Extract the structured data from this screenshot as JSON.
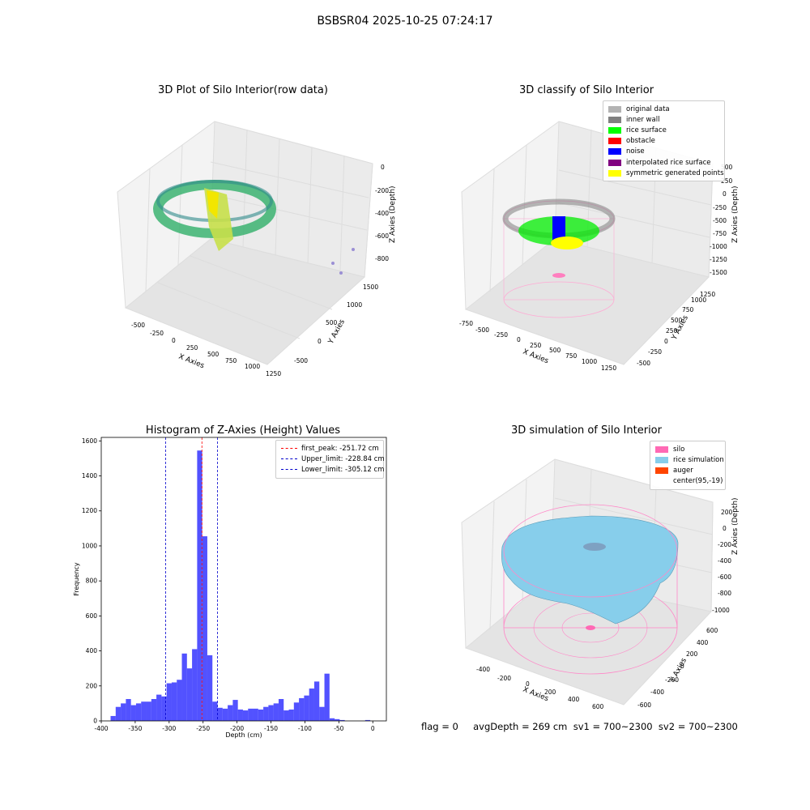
{
  "figure": {
    "suptitle": "BSBSR04 2025-10-25 07:24:17",
    "footer": "flag = 0     avgDepth = 269 cm  sv1 = 700~2300  sv2 = 700~2300"
  },
  "panels": {
    "raw": {
      "title": "3D Plot of Silo Interior(row data)",
      "xlabel": "X Axies",
      "ylabel": "Y Axies",
      "zlabel": "Z Axies (Depth)",
      "xticks": [
        "-500",
        "-250",
        "0",
        "250",
        "500",
        "750",
        "1000",
        "1250"
      ],
      "yticks": [
        "-500",
        "0",
        "500",
        "1000",
        "1500"
      ],
      "zticks": [
        "0",
        "-200",
        "-400",
        "-600",
        "-800"
      ]
    },
    "classify": {
      "title": "3D classify of Silo Interior",
      "xlabel": "X Axies",
      "ylabel": "Y Axies",
      "zlabel": "Z Axies (Depth)",
      "xticks": [
        "-750",
        "-500",
        "-250",
        "0",
        "250",
        "500",
        "750",
        "1000",
        "1250"
      ],
      "yticks": [
        "-500",
        "-250",
        "0",
        "250",
        "500",
        "750",
        "1000",
        "1250"
      ],
      "zticks": [
        "500",
        "250",
        "0",
        "-250",
        "-500",
        "-750",
        "-1000",
        "-1250",
        "-1500"
      ],
      "legend": [
        {
          "label": "original data",
          "color": "#b3b3b3"
        },
        {
          "label": "inner wall",
          "color": "#808080"
        },
        {
          "label": "rice surface",
          "color": "#00ff00"
        },
        {
          "label": "obstacle",
          "color": "#ff0000"
        },
        {
          "label": "noise",
          "color": "#0000ff"
        },
        {
          "label": "interpolated rice surface",
          "color": "#800080"
        },
        {
          "label": "symmetric generated points",
          "color": "#ffff00"
        }
      ]
    },
    "simulation": {
      "title": "3D simulation of Silo Interior",
      "xlabel": "X Axies",
      "ylabel": "Y Axies",
      "zlabel": "Z Axies (Depth)",
      "xticks": [
        "-400",
        "-200",
        "0",
        "200",
        "400",
        "600"
      ],
      "yticks": [
        "-600",
        "-400",
        "-200",
        "0",
        "200",
        "400",
        "600"
      ],
      "zticks": [
        "200",
        "0",
        "-200",
        "-400",
        "-600",
        "-800",
        "-1000"
      ],
      "legend": [
        {
          "label": "silo",
          "color": "#ff69b4"
        },
        {
          "label": "rice simulation",
          "color": "#87ceeb"
        },
        {
          "label": "auger",
          "color": "#ff4500"
        },
        {
          "label": "center(95,-19)",
          "color": ""
        }
      ]
    }
  },
  "chart_data": [
    {
      "type": "bar",
      "title": "Histogram of Z-Axies (Height) Values",
      "xlabel": "Depth (cm)",
      "ylabel": "Frequency",
      "xlim": [
        -400,
        20
      ],
      "ylim": [
        0,
        1620
      ],
      "xticks": [
        -400,
        -350,
        -300,
        -250,
        -200,
        -150,
        -100,
        -50,
        0
      ],
      "yticks": [
        0,
        200,
        400,
        600,
        800,
        1000,
        1200,
        1400,
        1600
      ],
      "bar_color": "#0000ff",
      "bin_width": 7.5,
      "bins": [
        {
          "x": -382.5,
          "value": 28
        },
        {
          "x": -375,
          "value": 80
        },
        {
          "x": -367.5,
          "value": 100
        },
        {
          "x": -360,
          "value": 125
        },
        {
          "x": -352.5,
          "value": 90
        },
        {
          "x": -345,
          "value": 100
        },
        {
          "x": -337.5,
          "value": 110
        },
        {
          "x": -330,
          "value": 110
        },
        {
          "x": -322.5,
          "value": 125
        },
        {
          "x": -315,
          "value": 150
        },
        {
          "x": -307.5,
          "value": 140
        },
        {
          "x": -300,
          "value": 215
        },
        {
          "x": -292.5,
          "value": 220
        },
        {
          "x": -285,
          "value": 235
        },
        {
          "x": -277.5,
          "value": 385
        },
        {
          "x": -270,
          "value": 300
        },
        {
          "x": -262.5,
          "value": 410
        },
        {
          "x": -255,
          "value": 1545
        },
        {
          "x": -247.5,
          "value": 1055
        },
        {
          "x": -240,
          "value": 375
        },
        {
          "x": -232.5,
          "value": 110
        },
        {
          "x": -225,
          "value": 75
        },
        {
          "x": -217.5,
          "value": 70
        },
        {
          "x": -210,
          "value": 90
        },
        {
          "x": -202.5,
          "value": 120
        },
        {
          "x": -195,
          "value": 65
        },
        {
          "x": -187.5,
          "value": 60
        },
        {
          "x": -180,
          "value": 70
        },
        {
          "x": -172.5,
          "value": 70
        },
        {
          "x": -165,
          "value": 65
        },
        {
          "x": -157.5,
          "value": 80
        },
        {
          "x": -150,
          "value": 90
        },
        {
          "x": -142.5,
          "value": 100
        },
        {
          "x": -135,
          "value": 125
        },
        {
          "x": -127.5,
          "value": 60
        },
        {
          "x": -120,
          "value": 65
        },
        {
          "x": -112.5,
          "value": 105
        },
        {
          "x": -105,
          "value": 130
        },
        {
          "x": -97.5,
          "value": 145
        },
        {
          "x": -90,
          "value": 185
        },
        {
          "x": -82.5,
          "value": 225
        },
        {
          "x": -75,
          "value": 80
        },
        {
          "x": -67.5,
          "value": 270
        },
        {
          "x": -60,
          "value": 15
        },
        {
          "x": -52.5,
          "value": 10
        },
        {
          "x": -45,
          "value": 5
        },
        {
          "x": -7.5,
          "value": 5
        }
      ],
      "vlines": [
        {
          "name": "first_peak: -251.72 cm",
          "x": -251.72,
          "color": "#ff0000"
        },
        {
          "name": "Upper_limit: -228.84 cm",
          "x": -228.84,
          "color": "#0000cc"
        },
        {
          "name": "Lower_limit: -305.12 cm",
          "x": -305.12,
          "color": "#0000cc"
        }
      ],
      "legend_position": "top-right"
    }
  ]
}
